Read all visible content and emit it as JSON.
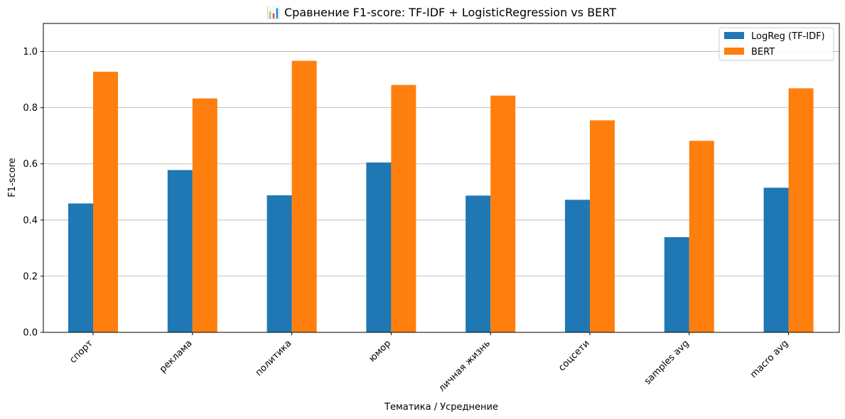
{
  "chart_data": {
    "type": "bar",
    "title": "📊 Сравнение F1-score: TF-IDF + LogisticRegression vs BERT",
    "xlabel": "Тематика / Усреднение",
    "ylabel": "F1-score",
    "categories": [
      "спорт",
      "реклама",
      "политика",
      "юмор",
      "личная жизнь",
      "соцсети",
      "samples avg",
      "macro avg"
    ],
    "series": [
      {
        "name": "LogReg (TF-IDF)",
        "color": "#1f77b4",
        "values": [
          0.459,
          0.578,
          0.488,
          0.605,
          0.487,
          0.472,
          0.339,
          0.515
        ]
      },
      {
        "name": "BERT",
        "color": "#ff7f0e",
        "values": [
          0.928,
          0.833,
          0.967,
          0.881,
          0.843,
          0.755,
          0.682,
          0.869
        ]
      }
    ],
    "ylim": [
      0,
      1.1
    ],
    "yticks": [
      "0.0",
      "0.2",
      "0.4",
      "0.6",
      "0.8",
      "1.0"
    ],
    "grid": "y-axis",
    "legend_position": "top-right"
  }
}
